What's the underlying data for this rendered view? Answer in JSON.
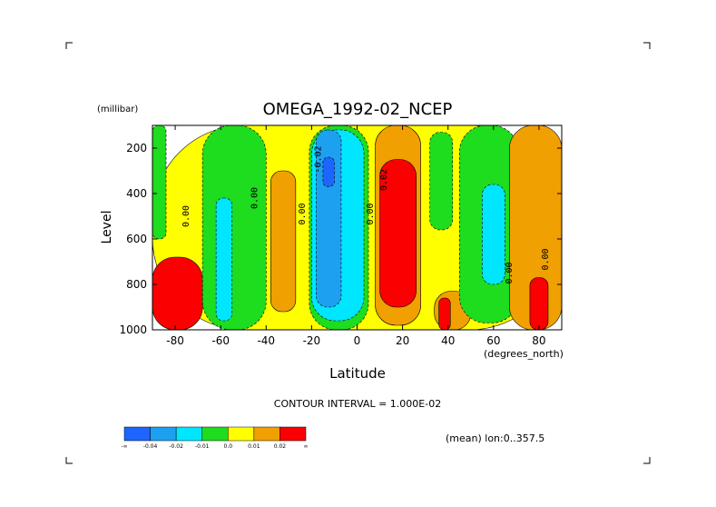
{
  "chart_data": {
    "type": "contour",
    "title": "OMEGA_1992-02_NCEP",
    "xlabel": "Latitude",
    "x_units": "(degrees_north)",
    "ylabel": "Level",
    "y_units": "(millibar)",
    "xlim": [
      -90,
      90
    ],
    "ylim": [
      1000,
      100
    ],
    "x_ticks": [
      "-80",
      "-60",
      "-40",
      "-20",
      "0",
      "20",
      "40",
      "60",
      "80"
    ],
    "y_ticks": [
      "200",
      "400",
      "600",
      "800",
      "1000"
    ],
    "contour_interval_text": "CONTOUR INTERVAL = 1.000E-02",
    "subtitle": "(mean) lon:0..357.5",
    "contour_labels": [
      {
        "text": "0.00",
        "lat": -74,
        "lev": 500
      },
      {
        "text": "0.00",
        "lat": -44,
        "lev": 420
      },
      {
        "text": "0.00",
        "lat": -23,
        "lev": 490
      },
      {
        "text": "-0.02",
        "lat": -16,
        "lev": 250
      },
      {
        "text": "0.00",
        "lat": 7,
        "lev": 490
      },
      {
        "text": "0.02",
        "lat": 13,
        "lev": 340
      },
      {
        "text": "0.00",
        "lat": 68,
        "lev": 750
      },
      {
        "text": "0.00",
        "lat": 84,
        "lev": 690
      }
    ],
    "colorbar": {
      "labels": [
        "-∞",
        "-0.04",
        "-0.02",
        "-0.01",
        "0.0",
        "0.01",
        "0.02",
        "∞"
      ],
      "colors": [
        "#1e64ff",
        "#1ea0f0",
        "#00e6ff",
        "#1edc1e",
        "#ffff00",
        "#f0a000",
        "#fa0000"
      ]
    },
    "regions": [
      {
        "level": "positive",
        "color": "#ffff00",
        "lat_range": [
          -90,
          90
        ],
        "lev_range": [
          100,
          1000
        ]
      },
      {
        "level": "negative-weak",
        "color": "#1edc1e",
        "lat_range": [
          -90,
          -84
        ],
        "lev_range": [
          100,
          600
        ]
      },
      {
        "level": "positive-strong",
        "color": "#fa0000",
        "lat_range": [
          -90,
          -68
        ],
        "lev_range": [
          680,
          1000
        ]
      },
      {
        "level": "negative-weak",
        "color": "#1edc1e",
        "lat_range": [
          -68,
          -40
        ],
        "lev_range": [
          100,
          1000
        ]
      },
      {
        "level": "negative-moderate",
        "color": "#00e6ff",
        "lat_range": [
          -62,
          -55
        ],
        "lev_range": [
          420,
          960
        ]
      },
      {
        "level": "positive-moderate",
        "color": "#f0a000",
        "lat_range": [
          -38,
          -27
        ],
        "lev_range": [
          300,
          920
        ]
      },
      {
        "level": "negative-weak",
        "color": "#1edc1e",
        "lat_range": [
          -21,
          5
        ],
        "lev_range": [
          100,
          1000
        ]
      },
      {
        "level": "negative-moderate",
        "color": "#00e6ff",
        "lat_range": [
          -20,
          3
        ],
        "lev_range": [
          120,
          960
        ]
      },
      {
        "level": "negative-strong",
        "color": "#1ea0f0",
        "lat_range": [
          -18,
          -7
        ],
        "lev_range": [
          120,
          900
        ]
      },
      {
        "level": "negative-extreme",
        "color": "#1e64ff",
        "lat_range": [
          -15,
          -10
        ],
        "lev_range": [
          240,
          370
        ]
      },
      {
        "level": "positive-moderate",
        "color": "#f0a000",
        "lat_range": [
          8,
          28
        ],
        "lev_range": [
          100,
          980
        ]
      },
      {
        "level": "positive-strong",
        "color": "#fa0000",
        "lat_range": [
          10,
          26
        ],
        "lev_range": [
          250,
          900
        ]
      },
      {
        "level": "negative-weak",
        "color": "#1edc1e",
        "lat_range": [
          32,
          42
        ],
        "lev_range": [
          130,
          560
        ]
      },
      {
        "level": "positive-moderate",
        "color": "#f0a000",
        "lat_range": [
          34,
          50
        ],
        "lev_range": [
          830,
          1000
        ]
      },
      {
        "level": "positive-strong",
        "color": "#fa0000",
        "lat_range": [
          36,
          41
        ],
        "lev_range": [
          860,
          1000
        ]
      },
      {
        "level": "negative-weak",
        "color": "#1edc1e",
        "lat_range": [
          45,
          71
        ],
        "lev_range": [
          100,
          970
        ]
      },
      {
        "level": "negative-moderate",
        "color": "#00e6ff",
        "lat_range": [
          55,
          65
        ],
        "lev_range": [
          360,
          800
        ]
      },
      {
        "level": "positive-moderate",
        "color": "#f0a000",
        "lat_range": [
          67,
          90
        ],
        "lev_range": [
          100,
          1000
        ]
      },
      {
        "level": "positive-strong",
        "color": "#fa0000",
        "lat_range": [
          76,
          84
        ],
        "lev_range": [
          770,
          1000
        ]
      }
    ]
  }
}
